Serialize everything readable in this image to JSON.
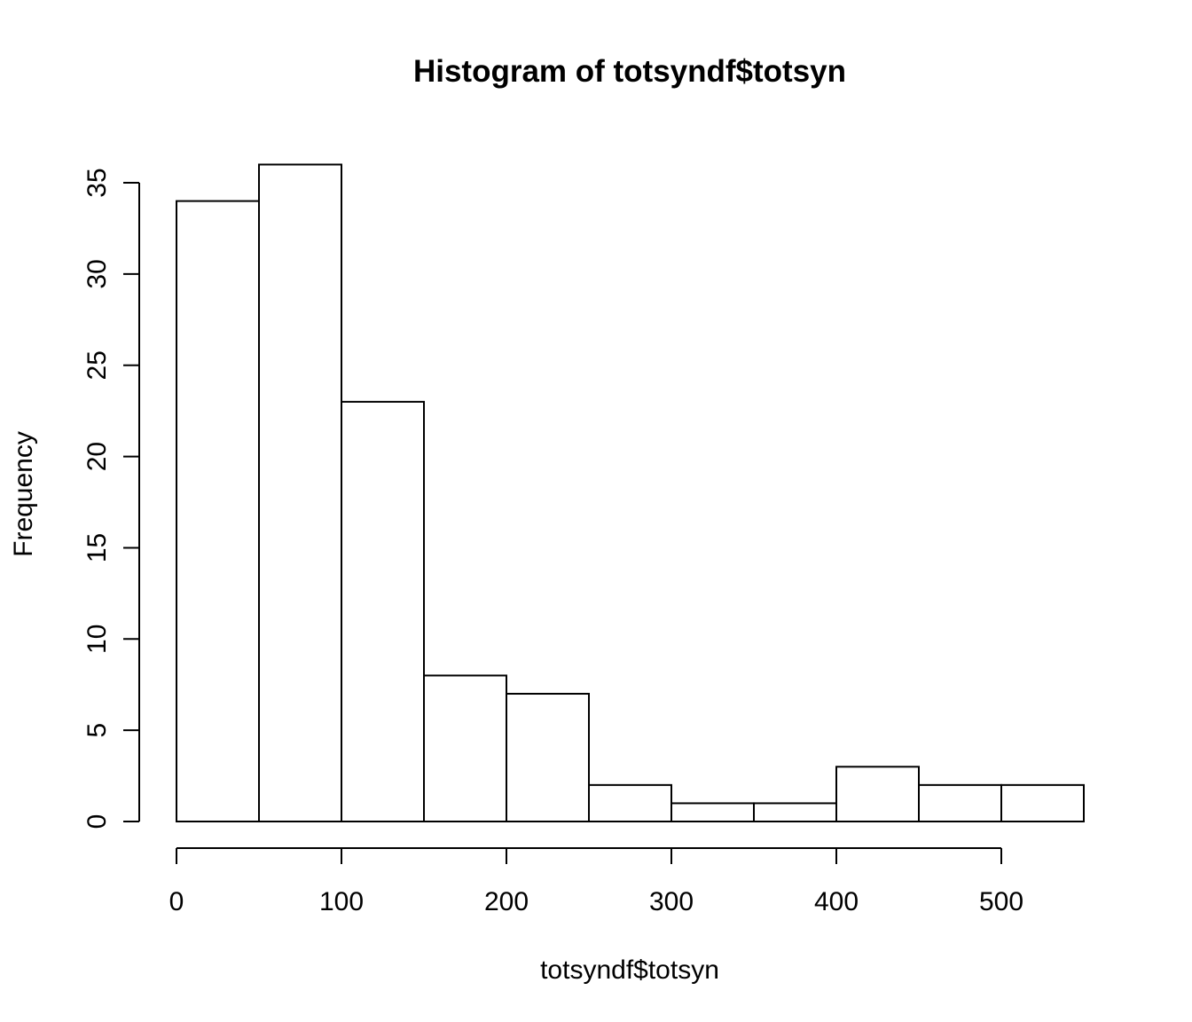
{
  "chart_data": {
    "type": "bar",
    "title": "Histogram of totsyndf$totsyn",
    "xlabel": "totsyndf$totsyn",
    "ylabel": "Frequency",
    "bin_edges": [
      0,
      50,
      100,
      150,
      200,
      250,
      300,
      350,
      400,
      450,
      500,
      550
    ],
    "values": [
      34,
      36,
      23,
      8,
      7,
      2,
      1,
      1,
      3,
      2,
      2
    ],
    "xlim": [
      0,
      550
    ],
    "ylim": [
      0,
      36
    ],
    "x_ticks": [
      0,
      100,
      200,
      300,
      400,
      500
    ],
    "y_ticks": [
      0,
      5,
      10,
      15,
      20,
      25,
      30,
      35
    ],
    "grid": false,
    "colors": {
      "bar_fill": "#ffffff",
      "bar_stroke": "#000000"
    }
  }
}
